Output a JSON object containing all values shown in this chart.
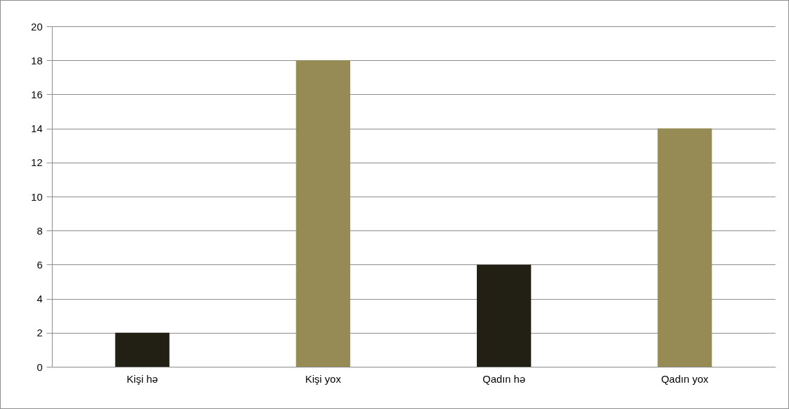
{
  "chart_data": {
    "type": "bar",
    "categories": [
      "Kişi hə",
      "Kişi yox",
      "Qadın hə",
      "Qadın yox"
    ],
    "values": [
      2,
      18,
      6,
      14
    ],
    "colors": [
      "#221f14",
      "#968b55",
      "#221f14",
      "#968b55"
    ],
    "ylim": [
      0,
      20
    ],
    "yticks": [
      0,
      2,
      4,
      6,
      8,
      10,
      12,
      14,
      16,
      18,
      20
    ],
    "grid": "y"
  }
}
